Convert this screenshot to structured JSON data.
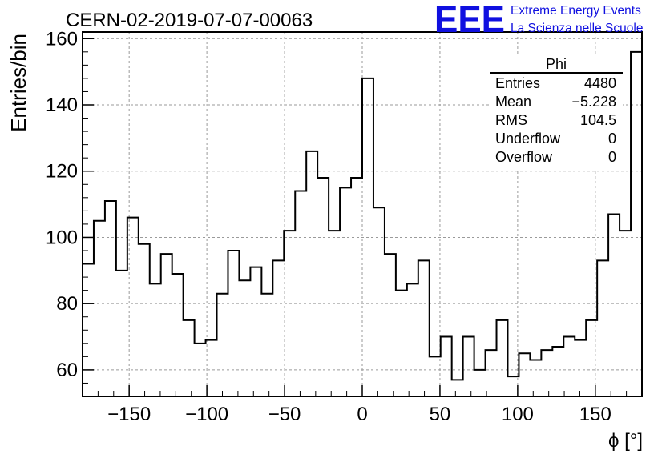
{
  "chart_data": {
    "type": "histogram",
    "title": "CERN-02-2019-07-07-00063",
    "xlabel": "ϕ [°]",
    "ylabel": "Entries/bin",
    "xlim": [
      -180,
      180
    ],
    "ylim": [
      52,
      162
    ],
    "bin_width": 7.2,
    "grid": true,
    "x_ticks": [
      -150,
      -100,
      -50,
      0,
      50,
      100,
      150
    ],
    "x_tick_labels": [
      "−150",
      "−100",
      "−50",
      "0",
      "50",
      "100",
      "150"
    ],
    "y_ticks": [
      60,
      80,
      100,
      120,
      140,
      160
    ],
    "y_tick_labels": [
      "60",
      "80",
      "100",
      "120",
      "140",
      "160"
    ],
    "bin_contents": [
      92,
      105,
      111,
      90,
      106,
      98,
      86,
      95,
      89,
      75,
      68,
      69,
      83,
      96,
      87,
      91,
      83,
      93,
      102,
      114,
      126,
      118,
      102,
      115,
      118,
      148,
      109,
      95,
      84,
      86,
      93,
      64,
      70,
      57,
      70,
      60,
      66,
      75,
      58,
      65,
      63,
      66,
      67,
      70,
      69,
      75,
      93,
      107,
      102,
      156
    ]
  },
  "stats_box": {
    "title": "Phi",
    "rows": [
      {
        "label": "Entries",
        "value": "4480"
      },
      {
        "label": "Mean",
        "value": "−5.228"
      },
      {
        "label": "RMS",
        "value": "104.5"
      },
      {
        "label": "Underflow",
        "value": "0"
      },
      {
        "label": "Overflow",
        "value": "0"
      }
    ]
  },
  "logo": {
    "mark": "EEE",
    "line1": "Extreme Energy Events",
    "line2": "La Scienza nelle Scuole",
    "color": "#1010e0"
  },
  "colors": {
    "line": "#000000",
    "grid": "#9a9a9a"
  }
}
